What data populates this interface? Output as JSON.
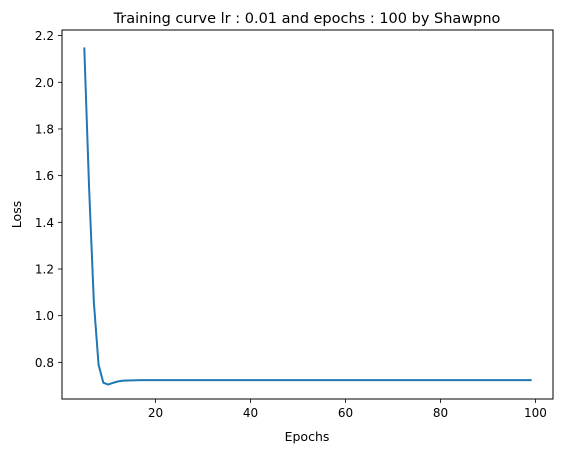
{
  "chart_data": {
    "type": "line",
    "title": "Training curve lr : 0.01 and epochs : 100 by Shawpno",
    "xlabel": "Epochs",
    "ylabel": "Loss",
    "xlim": [
      0.3,
      103.7
    ],
    "ylim": [
      0.643,
      2.224
    ],
    "xticks": [
      20,
      40,
      60,
      80,
      100
    ],
    "xtick_labels": [
      "20",
      "40",
      "60",
      "80",
      "100"
    ],
    "yticks": [
      0.8,
      1.0,
      1.2,
      1.4,
      1.6,
      1.8,
      2.0,
      2.2
    ],
    "ytick_labels": [
      "0.8",
      "1.0",
      "1.2",
      "1.4",
      "1.6",
      "1.8",
      "2.0",
      "2.2"
    ],
    "grid": false,
    "series": [
      {
        "color": "#1f77b4",
        "x": [
          5,
          6,
          7,
          8,
          9,
          10,
          11,
          12,
          13,
          14,
          15,
          16,
          17,
          18,
          19,
          20,
          21,
          22,
          23,
          24,
          25,
          26,
          27,
          28,
          29,
          30,
          31,
          32,
          33,
          34,
          35,
          36,
          37,
          38,
          39,
          40,
          41,
          42,
          43,
          44,
          45,
          46,
          47,
          48,
          49,
          50,
          51,
          52,
          53,
          54,
          55,
          56,
          57,
          58,
          59,
          60,
          61,
          62,
          63,
          64,
          65,
          66,
          67,
          68,
          69,
          70,
          71,
          72,
          73,
          74,
          75,
          76,
          77,
          78,
          79,
          80,
          81,
          82,
          83,
          84,
          85,
          86,
          87,
          88,
          89,
          90,
          91,
          92,
          93,
          94,
          95,
          96,
          97,
          98,
          99
        ],
        "y": [
          2.145,
          1.55,
          1.06,
          0.79,
          0.713,
          0.705,
          0.712,
          0.718,
          0.721,
          0.722,
          0.723,
          0.7235,
          0.724,
          0.724,
          0.724,
          0.724,
          0.724,
          0.724,
          0.724,
          0.724,
          0.724,
          0.724,
          0.724,
          0.724,
          0.724,
          0.724,
          0.724,
          0.724,
          0.724,
          0.724,
          0.724,
          0.724,
          0.724,
          0.724,
          0.724,
          0.724,
          0.724,
          0.724,
          0.724,
          0.724,
          0.724,
          0.724,
          0.724,
          0.724,
          0.724,
          0.724,
          0.724,
          0.724,
          0.724,
          0.724,
          0.724,
          0.724,
          0.724,
          0.724,
          0.724,
          0.724,
          0.724,
          0.724,
          0.724,
          0.724,
          0.724,
          0.724,
          0.724,
          0.724,
          0.724,
          0.724,
          0.724,
          0.724,
          0.724,
          0.724,
          0.724,
          0.724,
          0.724,
          0.724,
          0.724,
          0.724,
          0.724,
          0.724,
          0.724,
          0.724,
          0.724,
          0.724,
          0.724,
          0.724,
          0.724,
          0.724,
          0.724,
          0.724,
          0.724,
          0.724,
          0.724,
          0.724,
          0.724,
          0.724,
          0.724
        ]
      }
    ]
  }
}
